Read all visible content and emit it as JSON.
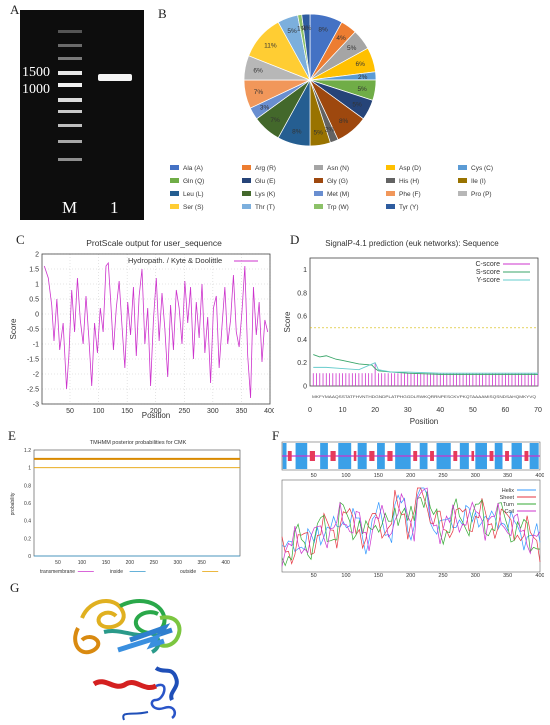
{
  "panel_labels": {
    "a": "A",
    "b": "B",
    "c": "C",
    "d": "D",
    "e": "E",
    "f": "F",
    "g": "G"
  },
  "gel": {
    "marker_1500": "1500",
    "marker_1000": "1000",
    "lane_m": "M",
    "lane_1": "1"
  },
  "pie": {
    "type": "pie",
    "slices": [
      {
        "label": "Ala (A)",
        "value": 8,
        "text": "8%",
        "color": "#4472c4"
      },
      {
        "label": "Arg (R)",
        "value": 4,
        "text": "4%",
        "color": "#ed7d31"
      },
      {
        "label": "Asn (N)",
        "value": 5,
        "text": "5%",
        "color": "#a5a5a5"
      },
      {
        "label": "Asp (D)",
        "value": 6,
        "text": "6%",
        "color": "#ffc000"
      },
      {
        "label": "Cys (C)",
        "value": 2,
        "text": "2%",
        "color": "#5b9bd5"
      },
      {
        "label": "Gln (Q)",
        "value": 5,
        "text": "5%",
        "color": "#70ad47"
      },
      {
        "label": "Glu (E)",
        "value": 5,
        "text": "5%",
        "color": "#264478"
      },
      {
        "label": "Gly (G)",
        "value": 8,
        "text": "8%",
        "color": "#9e480e"
      },
      {
        "label": "His (H)",
        "value": 2,
        "text": "2%",
        "color": "#636363"
      },
      {
        "label": "Ile (I)",
        "value": 5,
        "text": "5%",
        "color": "#997300"
      },
      {
        "label": "Leu (L)",
        "value": 8,
        "text": "8%",
        "color": "#255e91"
      },
      {
        "label": "Lys (K)",
        "value": 7,
        "text": "7%",
        "color": "#43682b"
      },
      {
        "label": "Met (M)",
        "value": 3,
        "text": "3%",
        "color": "#698ed0"
      },
      {
        "label": "Phe (F)",
        "value": 7,
        "text": "7%",
        "color": "#f1975a"
      },
      {
        "label": "Pro (P)",
        "value": 6,
        "text": "6%",
        "color": "#b7b7b7"
      },
      {
        "label": "Ser (S)",
        "value": 11,
        "text": "11%",
        "color": "#ffcd33"
      },
      {
        "label": "Thr (T)",
        "value": 5,
        "text": "5%",
        "color": "#7cafdd"
      },
      {
        "label": "Trp (W)",
        "value": 1,
        "text": "1%",
        "color": "#8cc168"
      },
      {
        "label": "Tyr (Y)",
        "value": 2,
        "text": "2%",
        "color": "#2e5c9f"
      }
    ],
    "legend_placement": "bottom"
  },
  "hydro": {
    "type": "line",
    "title": "ProtScale output for user_sequence",
    "legend": "Hydropath. / Kyte & Doolittle",
    "xlabel": "Position",
    "ylabel": "Score",
    "xlim": [
      1,
      400
    ],
    "ylim": [
      -3,
      2
    ],
    "xticks": [
      "50",
      "100",
      "150",
      "200",
      "250",
      "300",
      "350",
      "400"
    ],
    "yticks": [
      "2",
      "1.5",
      "1",
      "0.5",
      "0",
      "-0.5",
      "-1",
      "-1.5",
      "-2",
      "-2.5",
      "-3"
    ],
    "line_color": "#cc33cc",
    "x": [
      5,
      12,
      18,
      22,
      27,
      32,
      38,
      44,
      48,
      53,
      58,
      63,
      68,
      73,
      78,
      83,
      88,
      93,
      98,
      103,
      108,
      113,
      117,
      121,
      126,
      131,
      136,
      141,
      146,
      151,
      156,
      161,
      166,
      171,
      176,
      181,
      186,
      191,
      196,
      201,
      206,
      211,
      216,
      221,
      226,
      231,
      236,
      241,
      246,
      251,
      256,
      261,
      266,
      271,
      276,
      281,
      286,
      291,
      296,
      301,
      306,
      311,
      316,
      321,
      326,
      331,
      336,
      341,
      346,
      351,
      356,
      361,
      366,
      371,
      376,
      381,
      386,
      391,
      396
    ],
    "y": [
      1.6,
      1.2,
      0.3,
      -0.9,
      0.5,
      -1.2,
      -0.3,
      -2.5,
      -1.4,
      0.8,
      -0.6,
      1.2,
      -0.2,
      -1.0,
      0.6,
      -0.8,
      -2.4,
      -0.3,
      -1.3,
      0.2,
      -0.6,
      1.6,
      1.7,
      0.5,
      -1.2,
      0.2,
      1.1,
      -0.4,
      -1.8,
      0.4,
      -0.7,
      0.9,
      -1.4,
      0.6,
      1.5,
      -1.0,
      0.2,
      -2.4,
      -0.2,
      1.2,
      -0.9,
      0.7,
      -0.5,
      -2.1,
      0.3,
      -1.2,
      0.8,
      0.2,
      -1.0,
      1.1,
      -0.3,
      0.9,
      -1.5,
      0.4,
      -0.8,
      1.0,
      -1.3,
      -0.1,
      -2.3,
      0.2,
      0.6,
      -1.8,
      -0.4,
      0.9,
      -1.0,
      -0.2,
      1.3,
      -0.6,
      -1.1,
      0.1,
      1.6,
      -1.4,
      -2.8,
      0.9,
      -0.7,
      0.4,
      -1.6,
      -0.2,
      -0.6
    ]
  },
  "signalp": {
    "type": "line",
    "title": "SignalP-4.1 prediction (euk networks): Sequence",
    "xlabel": "Position",
    "ylabel": "Score",
    "xlim": [
      0,
      70
    ],
    "ylim": [
      0,
      1.1
    ],
    "xticks": [
      "0",
      "10",
      "20",
      "30",
      "40",
      "50",
      "60",
      "70"
    ],
    "yticks": [
      "1",
      "0.8",
      "0.6",
      "0.4",
      "0.2",
      "0"
    ],
    "sequence_text": "MKFYMAAQSSTATFHVNTHDGNDPLATPHGGDLRWKQRRNPESCKVPKQTAAAAMISQSNDSAHQMKYVQ",
    "threshold": 0.5,
    "series": [
      {
        "name": "C-score",
        "color": "#cc33cc",
        "x": [
          1,
          5,
          10,
          15,
          19,
          20,
          21,
          25,
          30,
          40,
          50,
          60,
          70
        ],
        "y": [
          0.11,
          0.11,
          0.11,
          0.11,
          0.11,
          0.2,
          0.12,
          0.11,
          0.11,
          0.11,
          0.11,
          0.11,
          0.11
        ]
      },
      {
        "name": "S-score",
        "color": "#3aa66a",
        "x": [
          1,
          3,
          5,
          8,
          10,
          15,
          19,
          20,
          21,
          25,
          30,
          40,
          50,
          60,
          70
        ],
        "y": [
          0.27,
          0.25,
          0.26,
          0.23,
          0.22,
          0.19,
          0.18,
          0.15,
          0.13,
          0.12,
          0.11,
          0.1,
          0.1,
          0.1,
          0.1
        ]
      },
      {
        "name": "Y-score",
        "color": "#66cccc",
        "x": [
          1,
          5,
          10,
          15,
          20,
          21,
          25,
          30,
          40,
          50,
          60,
          70
        ],
        "y": [
          0.16,
          0.16,
          0.15,
          0.14,
          0.2,
          0.14,
          0.12,
          0.12,
          0.11,
          0.11,
          0.11,
          0.11
        ]
      }
    ]
  },
  "tmhmm": {
    "type": "line",
    "title": "TMHMM posterior probabilities for CMK",
    "ylabel": "probability",
    "xlim": [
      0,
      430
    ],
    "ylim": [
      0,
      1.2
    ],
    "xticks": [
      "50",
      "100",
      "150",
      "200",
      "250",
      "300",
      "350",
      "400"
    ],
    "yticks": [
      "1.2",
      "1",
      "0.8",
      "0.6",
      "0.4",
      "0.2",
      "0"
    ],
    "legend": [
      {
        "name": "transmembrane",
        "color": "#cc33cc"
      },
      {
        "name": "inside",
        "color": "#3399cc"
      },
      {
        "name": "outside",
        "color": "#e6a100"
      }
    ],
    "outside_level": 1.0,
    "inside_level": 0.0,
    "transmembrane_level": 0.0
  },
  "secondary": {
    "type": "line",
    "xlim": [
      1,
      400
    ],
    "xticks": [
      "50",
      "100",
      "150",
      "200",
      "250",
      "300",
      "350",
      "400"
    ],
    "legend": [
      {
        "name": "Helix",
        "color": "#3399ff"
      },
      {
        "name": "Sheet",
        "color": "#e6333f"
      },
      {
        "name": "Turn",
        "color": "#33aa33"
      },
      {
        "name": "Coil",
        "color": "#cc33cc"
      }
    ]
  },
  "structure": {
    "description_hidden": ""
  }
}
